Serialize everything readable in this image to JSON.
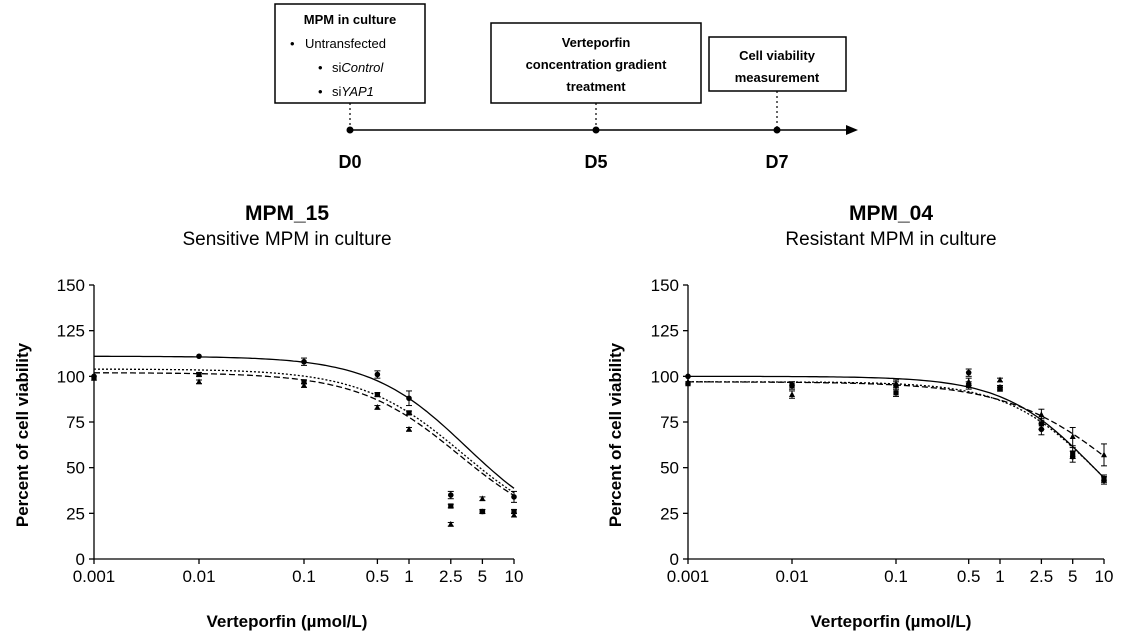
{
  "timeline": {
    "boxes": [
      {
        "title": "MPM in culture",
        "items": [
          {
            "pre": "Untransfected",
            "it": ""
          },
          {
            "pre": "si",
            "it": "Control"
          },
          {
            "pre": "si",
            "it": "YAP1"
          }
        ]
      },
      {
        "lines": [
          "Verteporfin",
          "concentration gradient",
          "treatment"
        ]
      },
      {
        "lines": [
          "Cell viability",
          "measurement"
        ]
      }
    ],
    "days": [
      "D0",
      "D5",
      "D7"
    ]
  },
  "chart_data": [
    {
      "type": "scatter",
      "title": "MPM_15",
      "subtitle": "Sensitive MPM in culture",
      "xlabel": "Verteporfin (µmol/L)",
      "ylabel": "Percent of cell viability",
      "xscale": "log",
      "xlim": [
        0.001,
        10
      ],
      "ylim": [
        0,
        150
      ],
      "xticks": [
        0.001,
        0.01,
        0.1,
        0.5,
        1,
        2.5,
        5,
        10
      ],
      "xticklabels": [
        "0.001",
        "0.01",
        "0.1",
        "0.5",
        "1",
        "2.5",
        "5",
        "10"
      ],
      "yticks": [
        0,
        25,
        50,
        75,
        100,
        125,
        150
      ],
      "yticklabels": [
        "0",
        "25",
        "50",
        "75",
        "100",
        "125",
        "150"
      ],
      "grid": false,
      "legend": "none",
      "series": [
        {
          "marker": "circle",
          "line": "solid",
          "x": [
            0.001,
            0.01,
            0.1,
            0.5,
            1,
            2.5,
            5,
            10
          ],
          "y": [
            100,
            111,
            108,
            101,
            88,
            35,
            26,
            34
          ],
          "err": [
            0,
            0,
            2,
            2,
            4,
            2,
            1,
            3
          ],
          "fit": {
            "top": 111,
            "bottom": 12,
            "ic50": 3.5,
            "hill": 0.95
          }
        },
        {
          "marker": "square",
          "line": "dotted",
          "x": [
            0.001,
            0.01,
            0.1,
            0.5,
            1,
            2.5,
            5,
            10
          ],
          "y": [
            99,
            101,
            97,
            90,
            80,
            29,
            26,
            26
          ],
          "err": [
            0,
            1,
            1,
            1,
            1,
            1,
            1,
            1
          ],
          "fit": {
            "top": 104,
            "bottom": 12,
            "ic50": 3.2,
            "hill": 0.9
          }
        },
        {
          "marker": "triangle",
          "line": "dashed",
          "x": [
            0.001,
            0.01,
            0.1,
            0.5,
            1,
            2.5,
            5,
            10
          ],
          "y": [
            99,
            97,
            95,
            83,
            71,
            19,
            33,
            24
          ],
          "err": [
            0,
            1,
            1,
            1,
            1,
            1,
            1,
            1
          ],
          "fit": {
            "top": 102,
            "bottom": 12,
            "ic50": 3.0,
            "hill": 0.9
          }
        }
      ]
    },
    {
      "type": "scatter",
      "title": "MPM_04",
      "subtitle": "Resistant MPM in culture",
      "xlabel": "Verteporfin (µmol/L)",
      "ylabel": "Percent of cell viability",
      "xscale": "log",
      "xlim": [
        0.001,
        10
      ],
      "ylim": [
        0,
        150
      ],
      "xticks": [
        0.001,
        0.01,
        0.1,
        0.5,
        1,
        2.5,
        5,
        10
      ],
      "xticklabels": [
        "0.001",
        "0.01",
        "0.1",
        "0.5",
        "1",
        "2.5",
        "5",
        "10"
      ],
      "yticks": [
        0,
        25,
        50,
        75,
        100,
        125,
        150
      ],
      "yticklabels": [
        "0",
        "25",
        "50",
        "75",
        "100",
        "125",
        "150"
      ],
      "grid": false,
      "legend": "none",
      "series": [
        {
          "marker": "circle",
          "line": "solid",
          "x": [
            0.001,
            0.01,
            0.1,
            0.5,
            1,
            2.5,
            5,
            10
          ],
          "y": [
            100,
            95,
            95,
            102,
            94,
            71,
            56,
            43
          ],
          "err": [
            0,
            2,
            2,
            2,
            1,
            3,
            3,
            2
          ],
          "fit": {
            "top": 100,
            "bottom": 0,
            "ic50": 8.0,
            "hill": 1.0
          }
        },
        {
          "marker": "square",
          "line": "dotted",
          "x": [
            0.001,
            0.01,
            0.1,
            0.5,
            1,
            2.5,
            5,
            10
          ],
          "y": [
            96,
            95,
            91,
            95,
            93,
            74,
            58,
            44
          ],
          "err": [
            0,
            2,
            2,
            2,
            1,
            3,
            3,
            2
          ],
          "fit": {
            "top": 97,
            "bottom": 0,
            "ic50": 8.5,
            "hill": 1.0
          }
        },
        {
          "marker": "triangle",
          "line": "dashed",
          "x": [
            0.001,
            0.01,
            0.1,
            0.5,
            1,
            2.5,
            5,
            10
          ],
          "y": [
            97,
            90,
            96,
            97,
            98,
            79,
            67,
            57
          ],
          "err": [
            0,
            2,
            2,
            2,
            1,
            3,
            5,
            6
          ],
          "fit": {
            "top": 97,
            "bottom": 0,
            "ic50": 15.0,
            "hill": 0.8
          }
        }
      ]
    }
  ]
}
